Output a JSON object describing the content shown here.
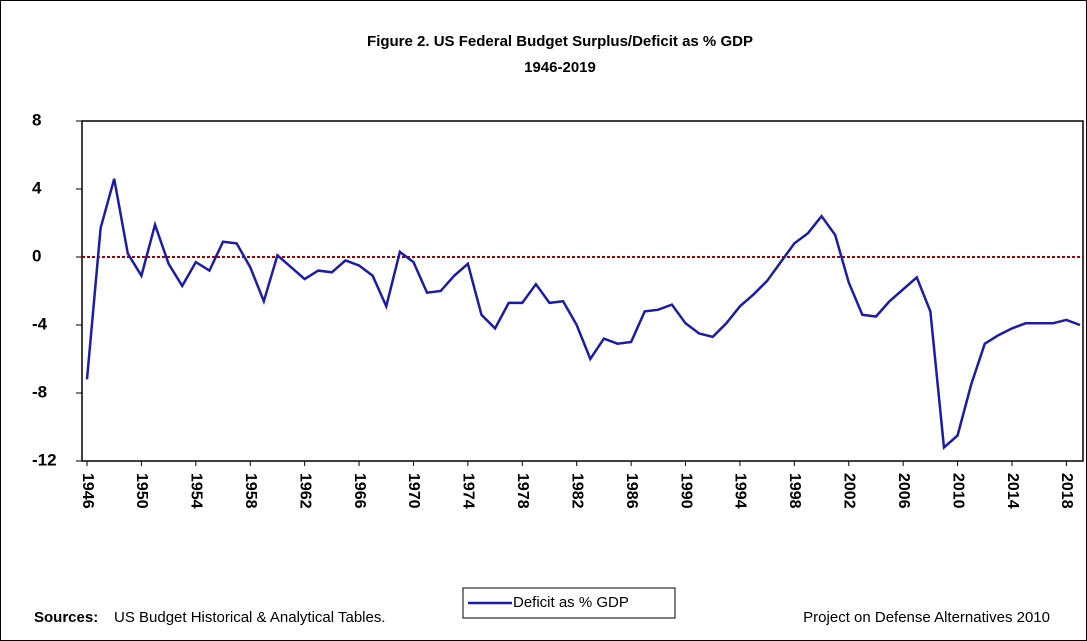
{
  "chart_data": {
    "type": "line",
    "title": "Figure 2. US Federal Budget Surplus/Deficit as % GDP",
    "subtitle": "1946-2019",
    "x": [
      1946,
      1947,
      1948,
      1949,
      1950,
      1951,
      1952,
      1953,
      1954,
      1955,
      1956,
      1957,
      1958,
      1959,
      1960,
      1961,
      1962,
      1963,
      1964,
      1965,
      1966,
      1967,
      1968,
      1969,
      1970,
      1971,
      1972,
      1973,
      1974,
      1975,
      1976,
      1977,
      1978,
      1979,
      1980,
      1981,
      1982,
      1983,
      1984,
      1985,
      1986,
      1987,
      1988,
      1989,
      1990,
      1991,
      1992,
      1993,
      1994,
      1995,
      1996,
      1997,
      1998,
      1999,
      2000,
      2001,
      2002,
      2003,
      2004,
      2005,
      2006,
      2007,
      2008,
      2009,
      2010,
      2011,
      2012,
      2013,
      2014,
      2015,
      2016,
      2017,
      2018,
      2019
    ],
    "series": [
      {
        "name": "Deficit as % GDP",
        "color": "#1c1ca8",
        "values": [
          -7.2,
          1.7,
          4.6,
          0.2,
          -1.1,
          1.9,
          -0.4,
          -1.7,
          -0.3,
          -0.8,
          0.9,
          0.8,
          -0.6,
          -2.6,
          0.1,
          -0.6,
          -1.3,
          -0.8,
          -0.9,
          -0.2,
          -0.5,
          -1.1,
          -2.9,
          0.3,
          -0.3,
          -2.1,
          -2.0,
          -1.1,
          -0.4,
          -3.4,
          -4.2,
          -2.7,
          -2.7,
          -1.6,
          -2.7,
          -2.6,
          -4.0,
          -6.0,
          -4.8,
          -5.1,
          -5.0,
          -3.2,
          -3.1,
          -2.8,
          -3.9,
          -4.5,
          -4.7,
          -3.9,
          -2.9,
          -2.2,
          -1.4,
          -0.3,
          0.8,
          1.4,
          2.4,
          1.3,
          -1.5,
          -3.4,
          -3.5,
          -2.6,
          -1.9,
          -1.2,
          -3.2,
          -11.2,
          -10.5,
          -7.5,
          -5.1,
          -4.6,
          -4.2,
          -3.9,
          -3.9,
          -3.9,
          -3.7,
          -4.0
        ]
      }
    ],
    "xlim": [
      1946,
      2019
    ],
    "xticks": [
      1946,
      1950,
      1954,
      1958,
      1962,
      1966,
      1970,
      1974,
      1978,
      1982,
      1986,
      1990,
      1994,
      1998,
      2002,
      2006,
      2010,
      2014,
      2018
    ],
    "ylim": [
      -12,
      8
    ],
    "yticks": [
      -12,
      -8,
      -4,
      0,
      4,
      8
    ],
    "reference_line": {
      "y": 0,
      "color": "#a00000"
    },
    "legend": "bottom",
    "sources_label": "Sources:",
    "sources": "US Budget Historical & Analytical Tables.",
    "credit": "Project on Defense Alternatives 2010"
  }
}
